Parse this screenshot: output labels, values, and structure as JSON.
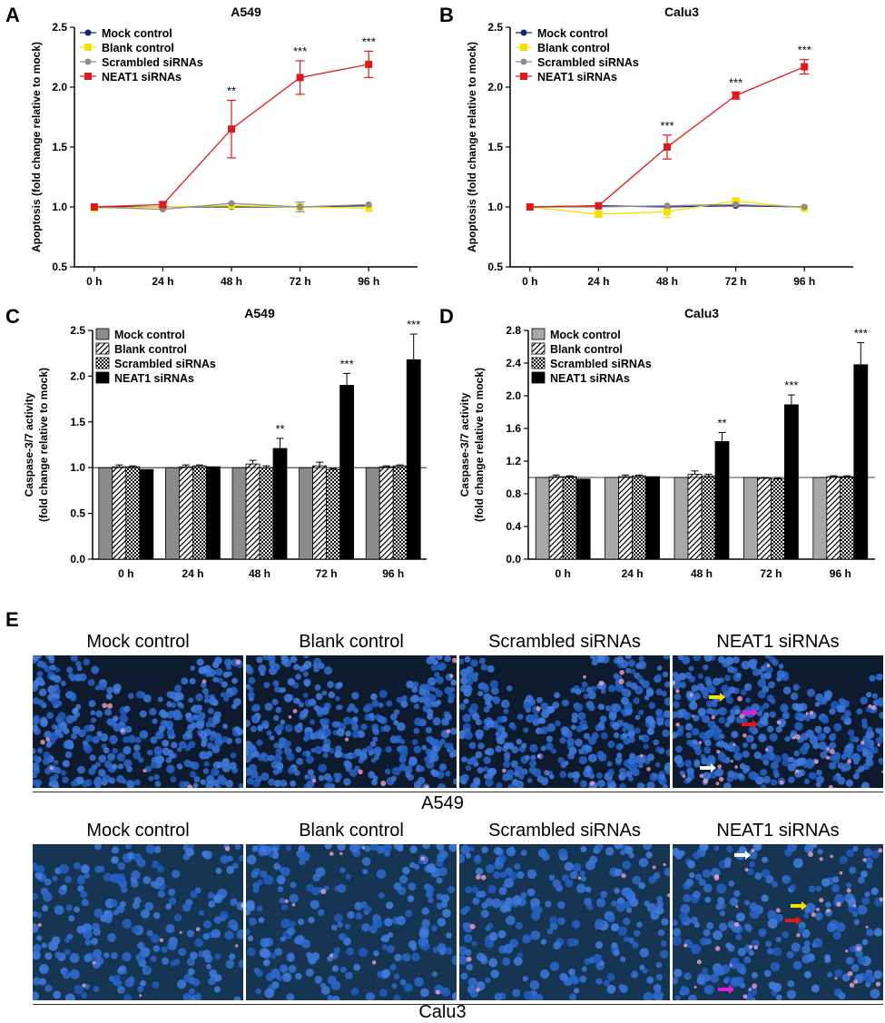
{
  "panels": {
    "A": "A",
    "B": "B",
    "C": "C",
    "D": "D",
    "E": "E"
  },
  "chart_data": [
    {
      "id": "A",
      "type": "line",
      "title": "A549",
      "ylabel": "Apoptosis (fold change relative to mock)",
      "categories": [
        "0 h",
        "24 h",
        "48 h",
        "72 h",
        "96 h"
      ],
      "ylim": [
        0.5,
        2.5
      ],
      "yticks": [
        "0.5",
        "1.0",
        "1.5",
        "2.0",
        "2.5"
      ],
      "legend": "top-left",
      "series": [
        {
          "name": "Mock  control",
          "color": "#1a237e",
          "marker": "circle",
          "values": [
            1.0,
            1.0,
            1.0,
            1.0,
            1.01
          ],
          "errors": [
            0.01,
            0.01,
            0.01,
            0.01,
            0.01
          ]
        },
        {
          "name": "Blank control",
          "color": "#f5e000",
          "marker": "square",
          "values": [
            0.99,
            1.0,
            1.01,
            1.0,
            0.99
          ],
          "errors": [
            0.01,
            0.01,
            0.01,
            0.01,
            0.01
          ]
        },
        {
          "name": "Scrambled siRNAs",
          "color": "#8c8c8c",
          "marker": "circle",
          "values": [
            1.0,
            0.98,
            1.03,
            1.0,
            1.02
          ],
          "errors": [
            0.01,
            0.01,
            0.01,
            0.04,
            0.01
          ]
        },
        {
          "name": "NEAT1 siRNAs",
          "color": "#e0191b",
          "marker": "square",
          "values": [
            1.0,
            1.02,
            1.65,
            2.08,
            2.19
          ],
          "errors": [
            0.01,
            0.02,
            0.24,
            0.14,
            0.11
          ]
        }
      ],
      "annotations": [
        {
          "x": "48 h",
          "text": "**"
        },
        {
          "x": "72 h",
          "text": "***"
        },
        {
          "x": "96 h",
          "text": "***"
        }
      ]
    },
    {
      "id": "B",
      "type": "line",
      "title": "Calu3",
      "ylabel": "Apoptosis (fold change relative to mock)",
      "categories": [
        "0 h",
        "24 h",
        "48 h",
        "72 h",
        "96 h"
      ],
      "ylim": [
        0.5,
        2.5
      ],
      "yticks": [
        "0.5",
        "1.0",
        "1.5",
        "2.0",
        "2.5"
      ],
      "legend": "top-left",
      "series": [
        {
          "name": "Mock  control",
          "color": "#1a237e",
          "marker": "circle",
          "values": [
            1.0,
            1.01,
            1.0,
            1.01,
            1.0
          ],
          "errors": [
            0.01,
            0.01,
            0.01,
            0.01,
            0.01
          ]
        },
        {
          "name": "Blank control",
          "color": "#f5e000",
          "marker": "square",
          "values": [
            1.0,
            0.94,
            0.96,
            1.05,
            0.99
          ],
          "errors": [
            0.01,
            0.02,
            0.05,
            0.02,
            0.01
          ]
        },
        {
          "name": "Scrambled siRNAs",
          "color": "#8c8c8c",
          "marker": "circle",
          "values": [
            1.0,
            1.0,
            1.01,
            1.02,
            1.0
          ],
          "errors": [
            0.01,
            0.01,
            0.01,
            0.01,
            0.01
          ]
        },
        {
          "name": "NEAT1 siRNAs",
          "color": "#e0191b",
          "marker": "square",
          "values": [
            1.0,
            1.01,
            1.5,
            1.93,
            2.17
          ],
          "errors": [
            0.01,
            0.01,
            0.1,
            0.03,
            0.06
          ]
        }
      ],
      "annotations": [
        {
          "x": "48 h",
          "text": "***"
        },
        {
          "x": "72 h",
          "text": "***"
        },
        {
          "x": "96 h",
          "text": "***"
        }
      ]
    },
    {
      "id": "C",
      "type": "bar",
      "title": "A549",
      "ylabel": "Caspase-3/7 activity",
      "ylabel2": "(fold change relative to mock)",
      "categories": [
        "0 h",
        "24 h",
        "48 h",
        "72 h",
        "96 h"
      ],
      "ylim": [
        0.0,
        2.5
      ],
      "yticks": [
        "0.0",
        "0.5",
        "1.0",
        "1.5",
        "2.0",
        "2.5"
      ],
      "reference_line": 1.0,
      "legend": "top-left",
      "series": [
        {
          "name": "Mock control",
          "pattern": "gray",
          "values": [
            1.0,
            1.0,
            1.0,
            1.0,
            1.0
          ],
          "errors": [
            0.0,
            0.0,
            0.0,
            0.0,
            0.0
          ]
        },
        {
          "name": "Blank control",
          "pattern": "diag",
          "values": [
            1.01,
            1.01,
            1.04,
            1.02,
            1.01
          ],
          "errors": [
            0.02,
            0.02,
            0.04,
            0.04,
            0.01
          ]
        },
        {
          "name": "Scrambled siRNAs",
          "pattern": "check",
          "values": [
            1.01,
            1.02,
            1.0,
            0.98,
            1.02
          ],
          "errors": [
            0.01,
            0.01,
            0.02,
            0.01,
            0.01
          ]
        },
        {
          "name": "NEAT1 siRNAs",
          "pattern": "black",
          "values": [
            0.98,
            1.01,
            1.21,
            1.9,
            2.18
          ],
          "errors": [
            0.0,
            0.0,
            0.11,
            0.13,
            0.28
          ]
        }
      ],
      "annotations": [
        {
          "x": "48 h",
          "text": "**"
        },
        {
          "x": "72 h",
          "text": "***"
        },
        {
          "x": "96 h",
          "text": "***"
        }
      ]
    },
    {
      "id": "D",
      "type": "bar",
      "title": "Calu3",
      "ylabel": "Caspase-3/7 activity",
      "ylabel2": "(fold change relative to mock)",
      "categories": [
        "0 h",
        "24 h",
        "48 h",
        "72 h",
        "96 h"
      ],
      "ylim": [
        0.0,
        2.8
      ],
      "yticks": [
        "0.0",
        "0.4",
        "0.8",
        "1.2",
        "1.6",
        "2.0",
        "2.4",
        "2.8"
      ],
      "reference_line": 1.0,
      "legend": "top-left",
      "series": [
        {
          "name": "Mock control",
          "pattern": "lightgray",
          "values": [
            1.0,
            1.0,
            1.0,
            1.0,
            1.0
          ],
          "errors": [
            0.0,
            0.0,
            0.0,
            0.0,
            0.0
          ]
        },
        {
          "name": "Blank control",
          "pattern": "diag",
          "values": [
            1.01,
            1.01,
            1.04,
            0.99,
            1.01
          ],
          "errors": [
            0.02,
            0.02,
            0.04,
            0.01,
            0.01
          ]
        },
        {
          "name": "Scrambled siRNAs",
          "pattern": "check",
          "values": [
            1.01,
            1.02,
            1.02,
            0.98,
            1.01
          ],
          "errors": [
            0.01,
            0.01,
            0.02,
            0.01,
            0.01
          ]
        },
        {
          "name": "NEAT1 siRNAs",
          "pattern": "black",
          "values": [
            0.98,
            1.01,
            1.44,
            1.89,
            2.38
          ],
          "errors": [
            0.0,
            0.0,
            0.11,
            0.12,
            0.27
          ]
        }
      ],
      "annotations": [
        {
          "x": "48 h",
          "text": "**"
        },
        {
          "x": "72 h",
          "text": "***"
        },
        {
          "x": "96 h",
          "text": "***"
        }
      ]
    }
  ],
  "micrographs": {
    "a549": {
      "group_label": "A549",
      "labels": [
        "Mock control",
        "Blank control",
        "Scrambled siRNAs",
        "NEAT1 siRNAs"
      ]
    },
    "calu3": {
      "group_label": "Calu3",
      "labels": [
        "Mock control",
        "Blank control",
        "Scrambled siRNAs",
        "NEAT1 siRNAs"
      ]
    }
  },
  "colors": {
    "nuclei": "#3a6fd0",
    "arrow_yellow": "#f5e000",
    "arrow_magenta": "#e020d8",
    "arrow_red": "#e0191b",
    "arrow_white": "#ffffff"
  }
}
